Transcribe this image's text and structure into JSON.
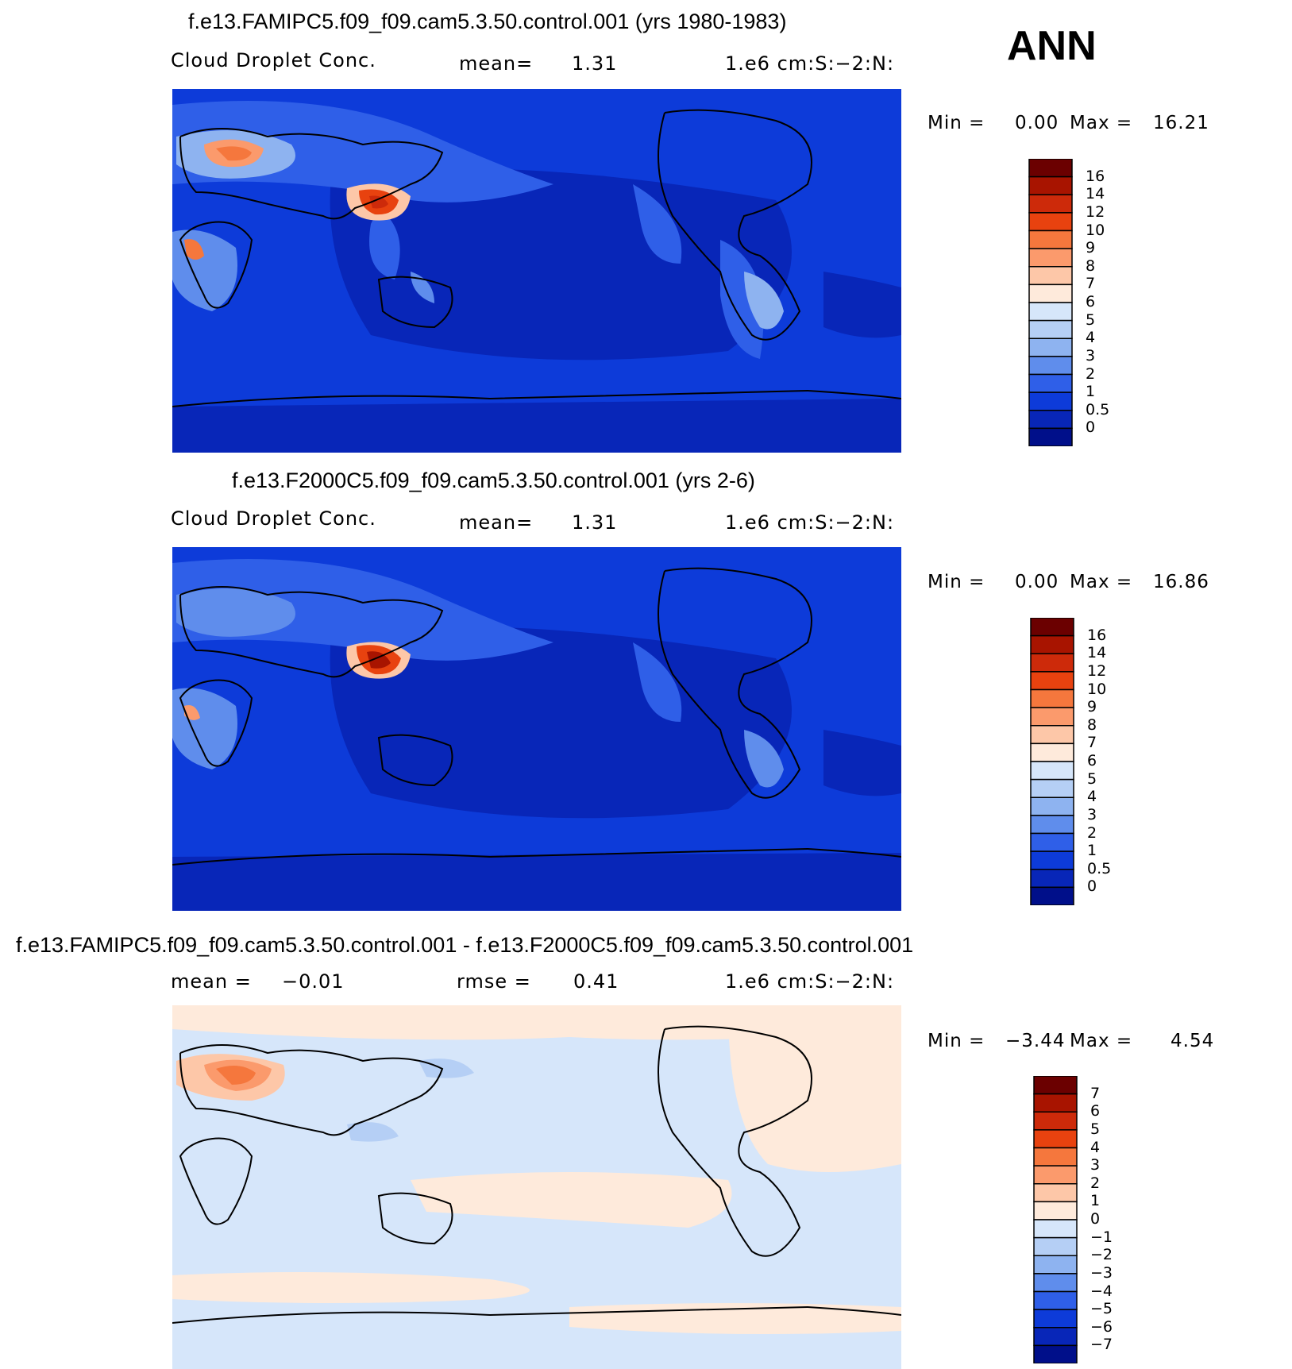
{
  "season": "ANN",
  "panels": [
    {
      "title": "f.e13.FAMIPC5.f09_f09.cam5.3.50.control.001 (yrs 1980-1983)",
      "left_label": "Cloud Droplet Conc.",
      "mean_label": "mean=",
      "mean_value": "1.31",
      "units": "1.e6 cm:S:−2:N:",
      "min_label": "Min =",
      "min_value": "0.00",
      "max_label": "Max =",
      "max_value": "16.21",
      "colorbar": {
        "labels": [
          "16",
          "14",
          "12",
          "10",
          "9",
          "8",
          "7",
          "6",
          "5",
          "4",
          "3",
          "2",
          "1",
          "0.5",
          "0"
        ],
        "colors": [
          "#6b0000",
          "#a81400",
          "#cd2a0a",
          "#e8420f",
          "#f5773d",
          "#fb9a6c",
          "#fdc7a8",
          "#feeadb",
          "#d6e6fa",
          "#b5cff5",
          "#8eb3f0",
          "#5f8dec",
          "#2f5fe8",
          "#0d3bd9",
          "#0826b8",
          "#000f8a"
        ]
      }
    },
    {
      "title": "f.e13.F2000C5.f09_f09.cam5.3.50.control.001 (yrs 2-6)",
      "left_label": "Cloud Droplet Conc.",
      "mean_label": "mean=",
      "mean_value": "1.31",
      "units": "1.e6 cm:S:−2:N:",
      "min_label": "Min =",
      "min_value": "0.00",
      "max_label": "Max =",
      "max_value": "16.86",
      "colorbar": {
        "labels": [
          "16",
          "14",
          "12",
          "10",
          "9",
          "8",
          "7",
          "6",
          "5",
          "4",
          "3",
          "2",
          "1",
          "0.5",
          "0"
        ],
        "colors": [
          "#6b0000",
          "#a81400",
          "#cd2a0a",
          "#e8420f",
          "#f5773d",
          "#fb9a6c",
          "#fdc7a8",
          "#feeadb",
          "#d6e6fa",
          "#b5cff5",
          "#8eb3f0",
          "#5f8dec",
          "#2f5fe8",
          "#0d3bd9",
          "#0826b8",
          "#000f8a"
        ]
      }
    },
    {
      "title": "f.e13.FAMIPC5.f09_f09.cam5.3.50.control.001 - f.e13.F2000C5.f09_f09.cam5.3.50.control.001",
      "left_label": "mean =",
      "left_value": "−0.01",
      "mean_label": "rmse =",
      "mean_value": "0.41",
      "units": "1.e6 cm:S:−2:N:",
      "min_label": "Min =",
      "min_value": "−3.44",
      "max_label": "Max =",
      "max_value": "4.54",
      "colorbar": {
        "labels": [
          "7",
          "6",
          "5",
          "4",
          "3",
          "2",
          "1",
          "0",
          "−1",
          "−2",
          "−3",
          "−4",
          "−5",
          "−6",
          "−7"
        ],
        "colors": [
          "#6b0000",
          "#a81400",
          "#cd2a0a",
          "#e8420f",
          "#f5773d",
          "#fb9a6c",
          "#fdc7a8",
          "#feeadb",
          "#d6e6fa",
          "#b5cff5",
          "#8eb3f0",
          "#5f8dec",
          "#2f5fe8",
          "#0d3bd9",
          "#0826b8",
          "#000f8a"
        ]
      }
    }
  ]
}
